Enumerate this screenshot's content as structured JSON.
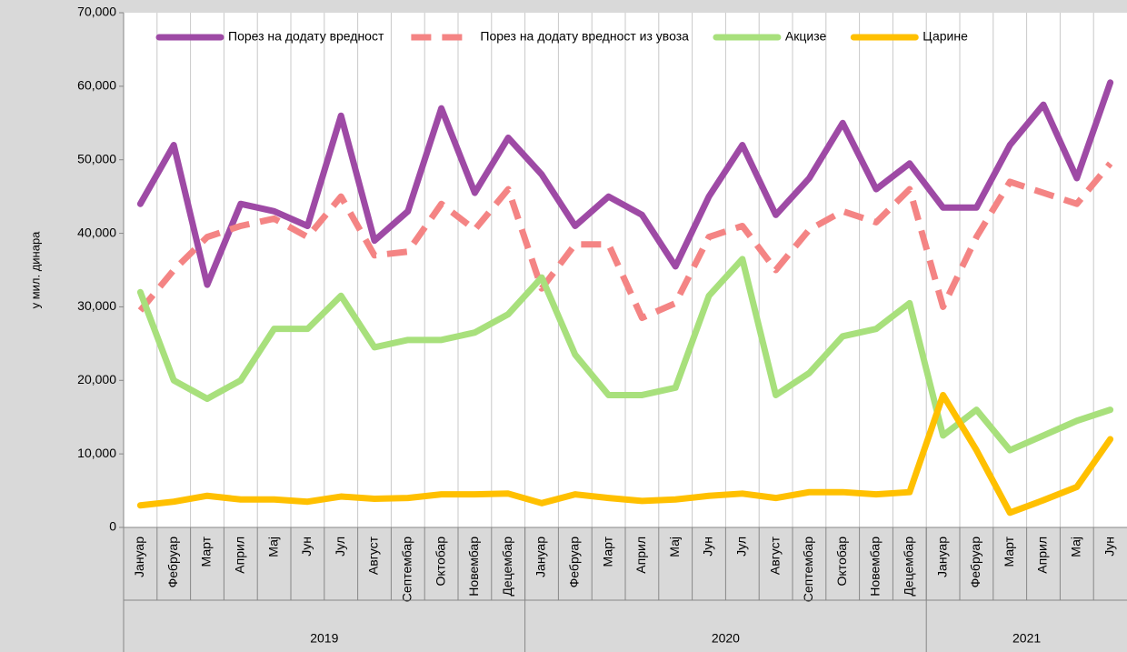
{
  "chart_data": {
    "type": "line",
    "y_label": "у мил. динара",
    "categories": [
      "Јануар",
      "Фебруар",
      "Март",
      "Април",
      "Мај",
      "Јун",
      "Јул",
      "Август",
      "Септембар",
      "Октобар",
      "Новембар",
      "Децембар",
      "Јануар",
      "Фебруар",
      "Март",
      "Април",
      "Мај",
      "Јун",
      "Јул",
      "Август",
      "Септембар",
      "Октобар",
      "Новембар",
      "Децембар",
      "Јануар",
      "Фебруар",
      "Март",
      "Април",
      "Мај",
      "Јун"
    ],
    "x_groups": [
      {
        "label": "2019",
        "size": 12
      },
      {
        "label": "2020",
        "size": 12
      },
      {
        "label": "2021",
        "size": 6
      }
    ],
    "ylim": [
      0,
      70000
    ],
    "yticks": [
      0,
      {
        "value": 10000,
        "label": "10,000"
      },
      {
        "value": 20000,
        "label": "20,000"
      },
      {
        "value": 30000,
        "label": "30,000"
      },
      {
        "value": 40000,
        "label": "40,000"
      },
      {
        "value": 50000,
        "label": "50,000"
      },
      {
        "value": 60000,
        "label": "60,000"
      },
      {
        "value": 70000,
        "label": "70,000"
      }
    ],
    "legend": "top",
    "series": [
      {
        "name": "Порез на додату вредност",
        "color": "#9e4aa5",
        "dashed": false,
        "values": [
          44000,
          52000,
          33000,
          44000,
          43000,
          41000,
          56000,
          39000,
          43000,
          57000,
          45500,
          53000,
          48000,
          41000,
          45000,
          42500,
          35500,
          45000,
          52000,
          42500,
          47500,
          55000,
          46000,
          49500,
          43500,
          43500,
          52000,
          57500,
          47500,
          60500
        ]
      },
      {
        "name": "Порез на додату вредност из увоза",
        "color": "#f48484",
        "dashed": true,
        "values": [
          29500,
          35000,
          39500,
          41000,
          42000,
          39500,
          45000,
          37000,
          37500,
          44000,
          40500,
          46000,
          32500,
          38500,
          38500,
          28500,
          30500,
          39500,
          41000,
          35000,
          40500,
          43000,
          41500,
          46000,
          30000,
          39500,
          47000,
          45500,
          44000,
          49500
        ]
      },
      {
        "name": "Акцизе",
        "color": "#a8e07c",
        "dashed": false,
        "values": [
          32000,
          20000,
          17500,
          20000,
          27000,
          27000,
          31500,
          24500,
          25500,
          25500,
          26500,
          29000,
          34000,
          23500,
          18000,
          18000,
          19000,
          31500,
          36500,
          18000,
          21000,
          26000,
          27000,
          30500,
          12500,
          16000,
          10500,
          12500,
          14500,
          16000
        ]
      },
      {
        "name": "Царине",
        "color": "#ffc000",
        "dashed": false,
        "values": [
          3000,
          3500,
          4300,
          3800,
          3800,
          3500,
          4200,
          3900,
          4000,
          4500,
          4500,
          4600,
          3300,
          4500,
          4000,
          3600,
          3800,
          4300,
          4600,
          4000,
          4800,
          4800,
          4500,
          4800,
          18000,
          10500,
          2000,
          3700,
          5500,
          12000
        ]
      }
    ]
  }
}
